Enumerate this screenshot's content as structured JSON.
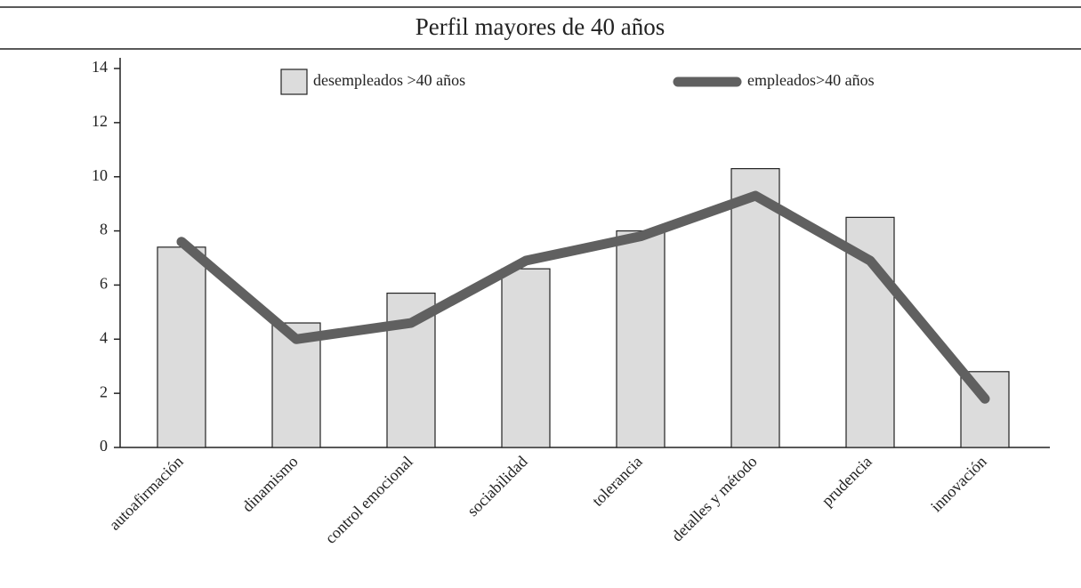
{
  "chart_data": {
    "type": "bar",
    "title": "Perfil mayores de 40 años",
    "categories": [
      "autoafirmación",
      "dinamismo",
      "control emocional",
      "sociabilidad",
      "tolerancia",
      "detalles y método",
      "prudencia",
      "innovación"
    ],
    "series": [
      {
        "name": "desempleados >40 años",
        "type": "bar",
        "color": "#dcdcdc",
        "values": [
          7.4,
          4.6,
          5.7,
          6.6,
          8.0,
          10.3,
          8.5,
          2.8
        ]
      },
      {
        "name": "empleados>40 años",
        "type": "line",
        "color": "#606060",
        "values": [
          7.6,
          4.0,
          4.6,
          6.9,
          7.8,
          9.3,
          6.9,
          1.8
        ]
      }
    ],
    "ylim": [
      0,
      14
    ],
    "yticks": [
      0,
      2,
      4,
      6,
      8,
      10,
      12,
      14
    ],
    "grid": false
  }
}
